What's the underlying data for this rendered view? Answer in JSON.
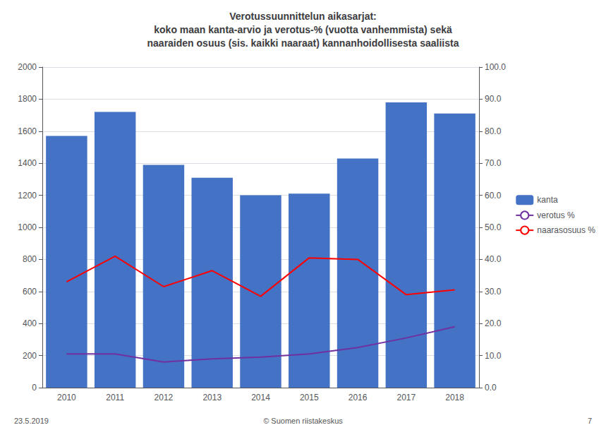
{
  "chart_data": {
    "type": "bar",
    "title": "Verotussuunnittelun aikasarjat:\nkoko maan kanta-arvio ja verotus-% (vuotta vanhemmista) sekä\nnaaraiden osuus (sis. kaikki naaraat) kannanhoidollisesta saaliista",
    "annotations": [
      "23.5.2019",
      "© Suomen riistakeskus",
      "7"
    ],
    "categories": [
      "2010",
      "2011",
      "2012",
      "2013",
      "2014",
      "2015",
      "2016",
      "2017",
      "2018"
    ],
    "series": [
      {
        "name": "kanta",
        "type": "bar",
        "color": "#4472C4",
        "values": [
          1570,
          1720,
          1390,
          1310,
          1200,
          1210,
          1430,
          1780,
          1710
        ]
      },
      {
        "name": "verotus %",
        "type": "line",
        "axis": "y2",
        "color": "#7030A0",
        "values": [
          10.5,
          10.5,
          8.0,
          9.0,
          9.5,
          10.5,
          12.5,
          15.5,
          19.0
        ]
      },
      {
        "name": "naarasosuus %",
        "type": "line",
        "axis": "y2",
        "color": "#FF0000",
        "values": [
          33.0,
          41.0,
          31.5,
          36.5,
          28.5,
          40.5,
          40.0,
          29.0,
          30.5
        ]
      }
    ],
    "ylim": [
      0,
      2000
    ],
    "yticks": [
      0,
      200,
      400,
      600,
      800,
      1000,
      1200,
      1400,
      1600,
      1800,
      2000
    ],
    "y2lim": [
      0,
      100
    ],
    "y2ticks": [
      {
        "value": 0,
        "label": "0.0"
      },
      {
        "value": 10,
        "label": "10.0"
      },
      {
        "value": 20,
        "label": "20.0"
      },
      {
        "value": 30,
        "label": "30.0"
      },
      {
        "value": 40,
        "label": "40.0"
      },
      {
        "value": 50,
        "label": "50.0"
      },
      {
        "value": 60,
        "label": "60.0"
      },
      {
        "value": 70,
        "label": "70.0"
      },
      {
        "value": 80,
        "label": "80.0"
      },
      {
        "value": 90,
        "label": "90.0"
      },
      {
        "value": 100,
        "label": "100.0"
      }
    ],
    "grid": true,
    "legend": "right"
  }
}
